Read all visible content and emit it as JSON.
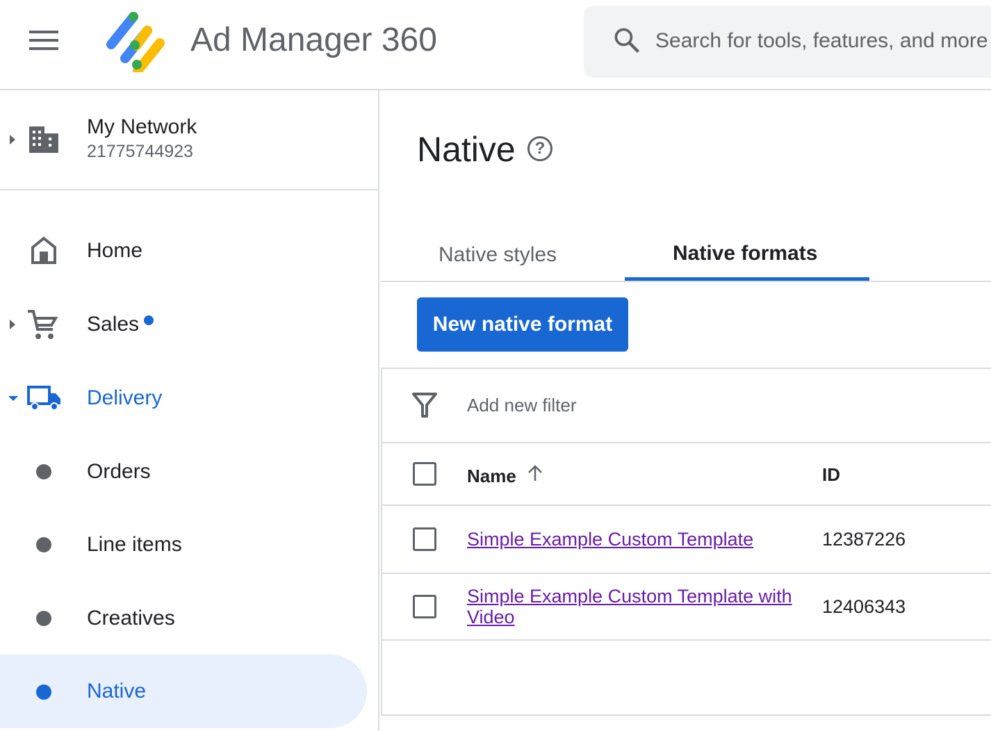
{
  "header": {
    "app_title": "Ad Manager 360",
    "search_placeholder": "Search for tools, features, and more"
  },
  "network": {
    "name": "My Network",
    "id": "21775744923"
  },
  "sidebar": {
    "items": [
      {
        "label": "Home"
      },
      {
        "label": "Sales",
        "badge": "dot"
      },
      {
        "label": "Delivery",
        "expanded": true
      },
      {
        "label": "Orders"
      },
      {
        "label": "Line items"
      },
      {
        "label": "Creatives"
      },
      {
        "label": "Native",
        "selected": true
      }
    ]
  },
  "main": {
    "title": "Native",
    "tabs": [
      {
        "label": "Native styles"
      },
      {
        "label": "Native formats",
        "active": true
      }
    ],
    "new_button": "New native format",
    "filter_label": "Add new filter",
    "table": {
      "columns": [
        "Name",
        "ID"
      ],
      "sort": "Name ascending",
      "rows": [
        {
          "name": "Simple Example Custom Template",
          "id": "12387226"
        },
        {
          "name_line1": "Simple Example Custom Template with",
          "name_line2": "Video",
          "id": "12406343"
        }
      ]
    }
  },
  "colors": {
    "accent": "#1967d2",
    "link": "#681da8",
    "active_bg": "#e8f0fe"
  }
}
